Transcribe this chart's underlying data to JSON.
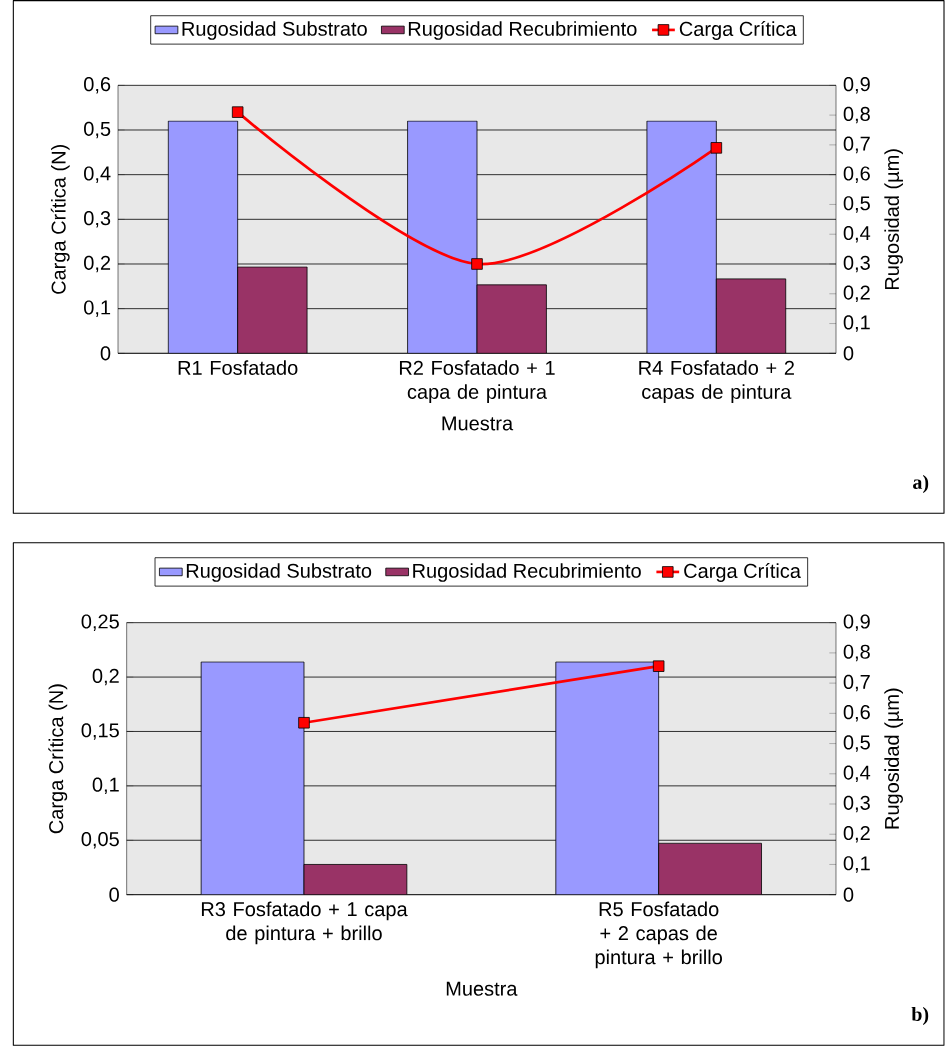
{
  "chart_data": [
    {
      "type": "bar",
      "categories": [
        "R1 Fosfatado",
        "R2 Fosfatado + 1 capa de pintura",
        "R4 Fosfatado + 2 capas de pintura"
      ],
      "xlabel": "Muestra",
      "ylabel": "Carga Crítica (N)",
      "y2label": "Rugosidad (µm)",
      "ylim": [
        0,
        0.6
      ],
      "yticks": [
        0,
        {
          "value": 0.1,
          "label": "0,1"
        },
        {
          "value": 0.2,
          "label": "0,2"
        },
        {
          "value": 0.3,
          "label": "0,3"
        },
        {
          "value": 0.4,
          "label": "0,4"
        },
        {
          "value": 0.5,
          "label": "0,5"
        },
        {
          "value": 0.6,
          "label": "0,6"
        }
      ],
      "y2lim": [
        0,
        0.9
      ],
      "y2ticks": [
        0,
        {
          "value": 0.1,
          "label": "0,1"
        },
        {
          "value": 0.2,
          "label": "0,2"
        },
        {
          "value": 0.3,
          "label": "0,3"
        },
        {
          "value": 0.4,
          "label": "0,4"
        },
        {
          "value": 0.5,
          "label": "0,5"
        },
        {
          "value": 0.6,
          "label": "0,6"
        },
        {
          "value": 0.7,
          "label": "0,7"
        },
        {
          "value": 0.8,
          "label": "0,8"
        },
        {
          "value": 0.9,
          "label": "0,9"
        }
      ],
      "series": [
        {
          "name": "Rugosidad Substrato",
          "axis": "y2",
          "color": "#9999ff",
          "values": [
            0.78,
            0.78,
            0.78
          ]
        },
        {
          "name": "Rugosidad Recubrimiento",
          "axis": "y2",
          "color": "#993366",
          "values": [
            0.29,
            0.23,
            0.25
          ]
        },
        {
          "name": "Carga Crítica",
          "type": "line",
          "axis": "y",
          "color": "#ff0000",
          "values": [
            0.54,
            0.2,
            0.46
          ]
        }
      ],
      "grid": "y",
      "legend": "top",
      "marker": "square",
      "annotations": [
        "a)"
      ]
    },
    {
      "type": "bar",
      "categories": [
        "R3 Fosfatado + 1 capa de pintura + brillo",
        "R5 Fosfatado + 2 capas de pintura + brillo"
      ],
      "xlabel": "Muestra",
      "ylabel": "Carga Crítica (N)",
      "y2label": "Rugosidad (µm)",
      "ylim": [
        0,
        0.25
      ],
      "yticks": [
        0,
        {
          "value": 0.05,
          "label": "0,05"
        },
        {
          "value": 0.1,
          "label": "0,1"
        },
        {
          "value": 0.15,
          "label": "0,15"
        },
        {
          "value": 0.2,
          "label": "0,2"
        },
        {
          "value": 0.25,
          "label": "0,25"
        }
      ],
      "y2lim": [
        0,
        0.9
      ],
      "y2ticks": [
        0,
        {
          "value": 0.1,
          "label": "0,1"
        },
        {
          "value": 0.2,
          "label": "0,2"
        },
        {
          "value": 0.3,
          "label": "0,3"
        },
        {
          "value": 0.4,
          "label": "0,4"
        },
        {
          "value": 0.5,
          "label": "0,5"
        },
        {
          "value": 0.6,
          "label": "0,6"
        },
        {
          "value": 0.7,
          "label": "0,7"
        },
        {
          "value": 0.8,
          "label": "0,8"
        },
        {
          "value": 0.9,
          "label": "0,9"
        }
      ],
      "series": [
        {
          "name": "Rugosidad Substrato",
          "axis": "y2",
          "color": "#9999ff",
          "values": [
            0.77,
            0.77
          ]
        },
        {
          "name": "Rugosidad Recubrimiento",
          "axis": "y2",
          "color": "#993366",
          "values": [
            0.1,
            0.17
          ]
        },
        {
          "name": "Carga Crítica",
          "type": "line",
          "axis": "y",
          "color": "#ff0000",
          "values": [
            0.158,
            0.21
          ]
        }
      ],
      "grid": "y",
      "legend": "top",
      "marker": "square",
      "annotations": [
        "b)"
      ]
    }
  ]
}
